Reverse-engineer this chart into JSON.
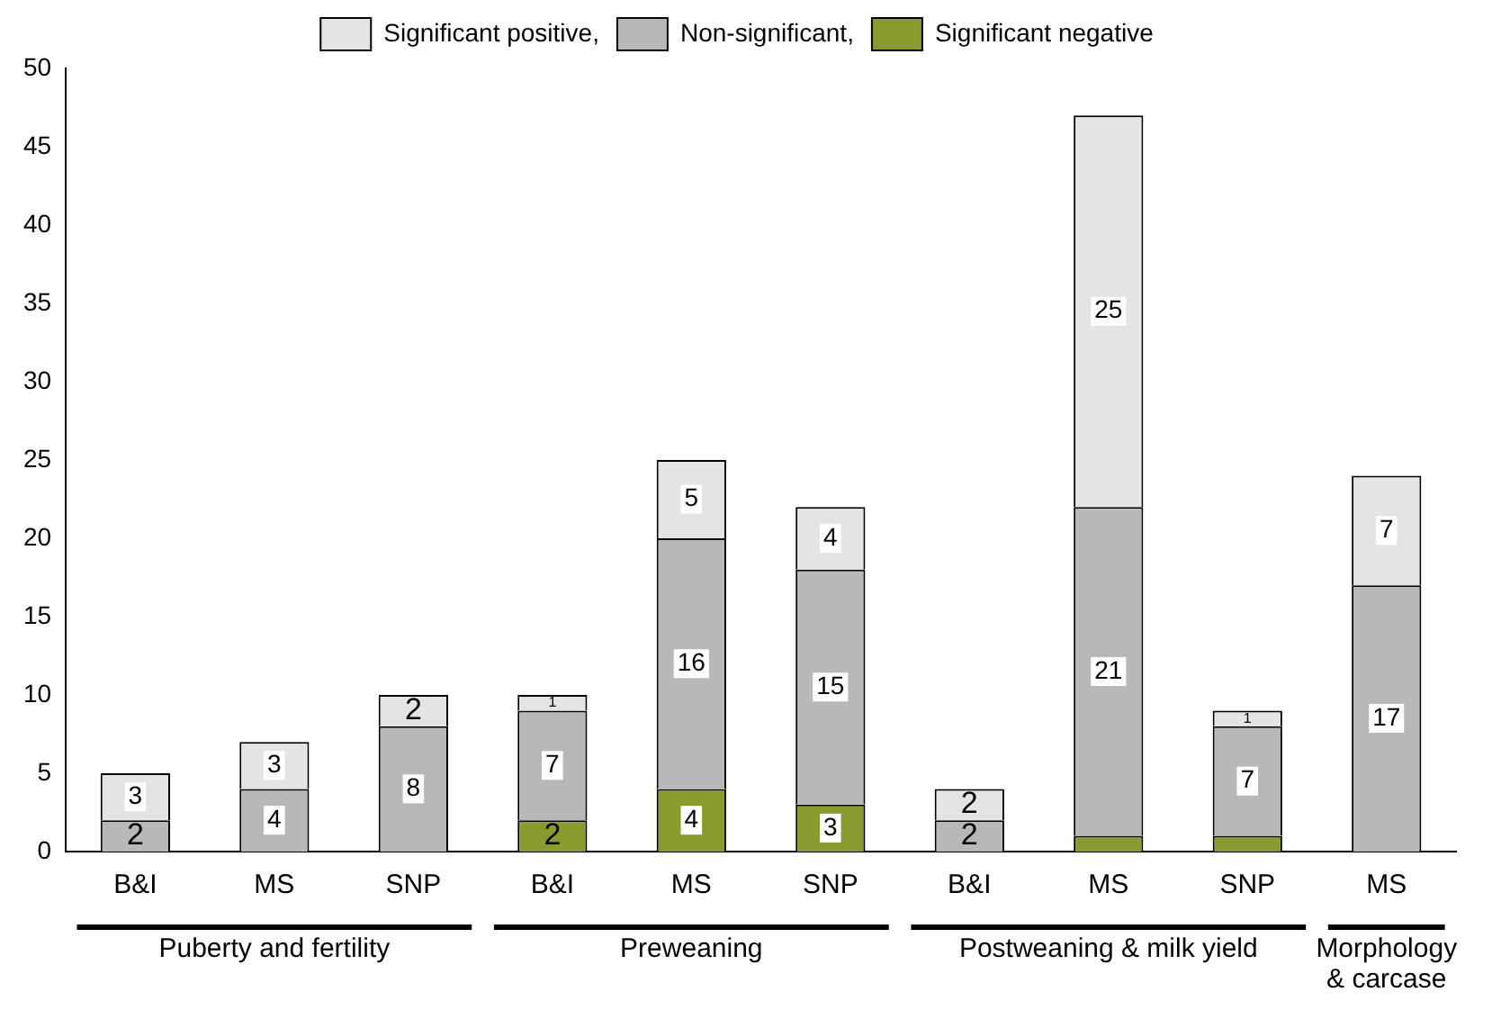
{
  "chart_data": {
    "type": "bar",
    "stacked": true,
    "categories": [
      "B&I",
      "MS",
      "SNP",
      "B&I",
      "MS",
      "SNP",
      "B&I",
      "MS",
      "SNP",
      "MS"
    ],
    "series": [
      {
        "name": "Significant negative",
        "color": "#8a9a2e",
        "values": [
          0,
          0,
          0,
          2,
          4,
          3,
          0,
          1,
          1,
          0
        ],
        "value_labels": [
          null,
          null,
          null,
          "2",
          "4",
          "3",
          null,
          null,
          null,
          null
        ]
      },
      {
        "name": "Non-significant,",
        "color": "#b8b8b8",
        "values": [
          2,
          4,
          8,
          7,
          16,
          15,
          2,
          21,
          7,
          17
        ],
        "value_labels": [
          "2",
          "4",
          "8",
          "7",
          "16",
          "15",
          "2",
          "21",
          "7",
          "17"
        ]
      },
      {
        "name": "Significant positive,",
        "color": "#e4e4e4",
        "values": [
          3,
          3,
          2,
          1,
          5,
          4,
          2,
          25,
          1,
          7
        ],
        "value_labels": [
          "3",
          "3",
          "2",
          "1",
          "5",
          "4",
          "2",
          "25",
          "1",
          "7"
        ]
      }
    ],
    "ylim": [
      0,
      50
    ],
    "yticks": [
      0,
      5,
      10,
      15,
      20,
      25,
      30,
      35,
      40,
      45,
      50
    ],
    "grid": false,
    "legend": "top",
    "annotations": [
      "Puberty and fertility",
      "Preweaning",
      "Postweaning & milk yield",
      "Morphology & carcase"
    ]
  }
}
